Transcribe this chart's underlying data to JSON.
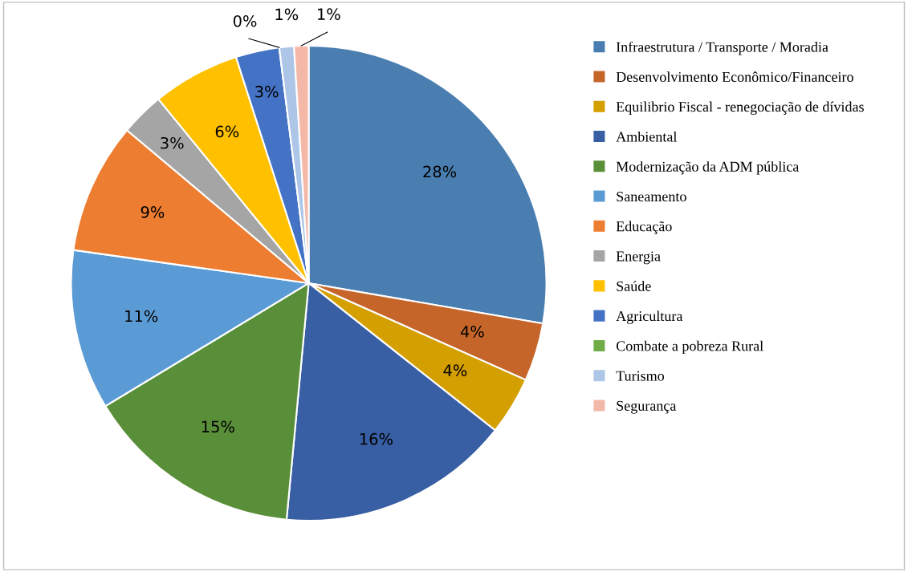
{
  "chart_data": {
    "type": "pie",
    "categories": [
      "Infraestrutura / Transporte / Moradia",
      "Desenvolvimento Econômico/Financeiro",
      "Equilibrio Fiscal - renegociação de dívidas",
      "Ambiental",
      "Modernização da ADM pública",
      "Saneamento",
      "Educação",
      "Energia",
      "Saúde",
      "Agricultura",
      "Combate a pobreza Rural",
      "Turismo",
      "Segurança"
    ],
    "values": [
      28,
      4,
      4,
      16,
      15,
      11,
      9,
      3,
      6,
      3,
      0,
      1,
      1
    ],
    "colors": [
      "#4a7eb0",
      "#c5652a",
      "#d49f00",
      "#385ea3",
      "#5a8f3a",
      "#5b9bd5",
      "#ed7d31",
      "#a5a5a5",
      "#ffc000",
      "#4472c4",
      "#70ad47",
      "#adc6e8",
      "#f4b8a8"
    ],
    "value_labels": [
      "28%",
      "4%",
      "4%",
      "16%",
      "15%",
      "11%",
      "9%",
      "3%",
      "6%",
      "3%",
      "0%",
      "1%",
      "1%"
    ],
    "legend": "right"
  }
}
